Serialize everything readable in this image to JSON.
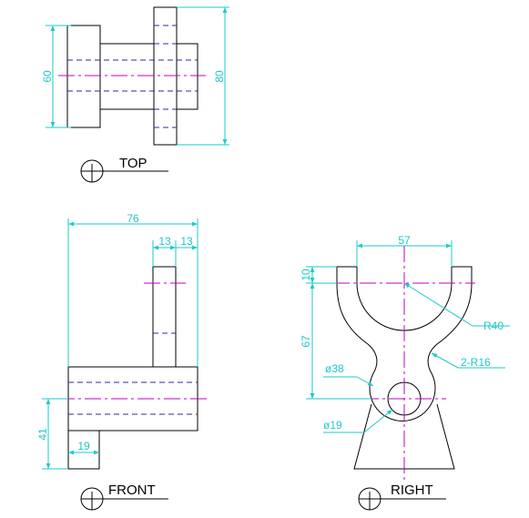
{
  "views": {
    "top": {
      "label": "TOP",
      "dims": {
        "height": "60",
        "overall": "80"
      }
    },
    "front": {
      "label": "FRONT",
      "dims": {
        "length": "76",
        "rib_a": "13",
        "rib_b": "13",
        "height": "41",
        "base": "19"
      }
    },
    "right": {
      "label": "RIGHT",
      "dims": {
        "width": "57",
        "top": "10",
        "height": "67",
        "radius": "R40",
        "fillets": "2-R16",
        "outer_dia": "ø38",
        "bore_dia": "ø19"
      }
    }
  },
  "colors": {
    "object": "#000000",
    "dimension": "#1ec8c8",
    "center": "#c000c0",
    "hidden": "#2a2aa8"
  }
}
